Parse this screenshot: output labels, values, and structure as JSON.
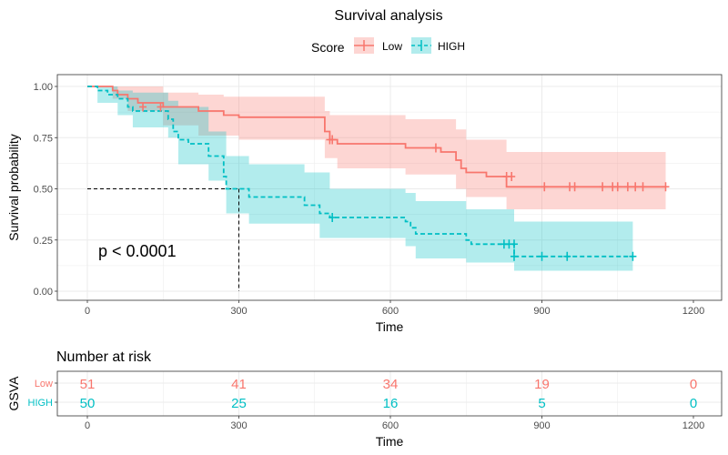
{
  "colors": {
    "low": "#F8766D",
    "high": "#00BFC4",
    "grid": "#ebebeb",
    "panel_border": "#333333"
  },
  "chart_data": [
    {
      "type": "line",
      "subtype": "kaplan-meier",
      "title": "Survival analysis",
      "xlabel": "Time",
      "ylabel": "Survival probability",
      "xlim": [
        0,
        1200
      ],
      "ylim": [
        0,
        1
      ],
      "xticks": [
        "0",
        "300",
        "600",
        "900",
        "1200"
      ],
      "yticks": [
        "0.00",
        "0.25",
        "0.50",
        "0.75",
        "1.00"
      ],
      "grid": true,
      "legend": {
        "title": "Score",
        "position": "top",
        "entries": [
          "Low",
          "HIGH"
        ]
      },
      "annotation": "p < 0.0001",
      "median_line": {
        "y": 0.5,
        "x": 300
      },
      "series": [
        {
          "name": "Low",
          "color": "#F8766D",
          "line_style": "solid",
          "steps": [
            [
              0,
              1.0
            ],
            [
              50,
              0.98
            ],
            [
              60,
              0.96
            ],
            [
              80,
              0.94
            ],
            [
              100,
              0.92
            ],
            [
              150,
              0.9
            ],
            [
              220,
              0.88
            ],
            [
              270,
              0.86
            ],
            [
              300,
              0.85
            ],
            [
              470,
              0.78
            ],
            [
              480,
              0.74
            ],
            [
              495,
              0.72
            ],
            [
              630,
              0.7
            ],
            [
              700,
              0.68
            ],
            [
              730,
              0.64
            ],
            [
              740,
              0.6
            ],
            [
              750,
              0.58
            ],
            [
              790,
              0.56
            ],
            [
              830,
              0.55
            ],
            [
              830,
              0.53
            ],
            [
              830,
              0.51
            ],
            [
              1145,
              0.51
            ]
          ],
          "lower": [
            [
              0,
              1.0
            ],
            [
              50,
              0.94
            ],
            [
              80,
              0.88
            ],
            [
              150,
              0.81
            ],
            [
              220,
              0.76
            ],
            [
              300,
              0.74
            ],
            [
              470,
              0.65
            ],
            [
              495,
              0.6
            ],
            [
              630,
              0.57
            ],
            [
              730,
              0.5
            ],
            [
              750,
              0.46
            ],
            [
              830,
              0.4
            ],
            [
              1145,
              0.38
            ]
          ],
          "upper": [
            [
              0,
              1.0
            ],
            [
              50,
              1.0
            ],
            [
              150,
              0.97
            ],
            [
              220,
              0.96
            ],
            [
              270,
              0.95
            ],
            [
              470,
              0.88
            ],
            [
              480,
              0.86
            ],
            [
              630,
              0.84
            ],
            [
              730,
              0.79
            ],
            [
              750,
              0.74
            ],
            [
              830,
              0.68
            ],
            [
              1145,
              0.68
            ]
          ],
          "censored": [
            [
              110,
              0.9
            ],
            [
              145,
              0.9
            ],
            [
              480,
              0.74
            ],
            [
              485,
              0.74
            ],
            [
              690,
              0.7
            ],
            [
              830,
              0.56
            ],
            [
              840,
              0.56
            ],
            [
              905,
              0.51
            ],
            [
              955,
              0.51
            ],
            [
              965,
              0.51
            ],
            [
              1020,
              0.51
            ],
            [
              1040,
              0.51
            ],
            [
              1050,
              0.51
            ],
            [
              1070,
              0.51
            ],
            [
              1085,
              0.51
            ],
            [
              1100,
              0.51
            ],
            [
              1145,
              0.51
            ]
          ]
        },
        {
          "name": "HIGH",
          "color": "#00BFC4",
          "line_style": "dashed",
          "steps": [
            [
              0,
              1.0
            ],
            [
              20,
              0.98
            ],
            [
              40,
              0.96
            ],
            [
              60,
              0.94
            ],
            [
              80,
              0.9
            ],
            [
              90,
              0.88
            ],
            [
              160,
              0.84
            ],
            [
              170,
              0.78
            ],
            [
              180,
              0.74
            ],
            [
              200,
              0.72
            ],
            [
              240,
              0.66
            ],
            [
              270,
              0.56
            ],
            [
              275,
              0.5
            ],
            [
              300,
              0.5
            ],
            [
              320,
              0.46
            ],
            [
              430,
              0.42
            ],
            [
              460,
              0.38
            ],
            [
              480,
              0.36
            ],
            [
              630,
              0.34
            ],
            [
              640,
              0.31
            ],
            [
              650,
              0.28
            ],
            [
              750,
              0.25
            ],
            [
              760,
              0.23
            ],
            [
              845,
              0.17
            ],
            [
              1080,
              0.17
            ]
          ],
          "lower": [
            [
              0,
              1.0
            ],
            [
              20,
              0.92
            ],
            [
              60,
              0.86
            ],
            [
              90,
              0.8
            ],
            [
              160,
              0.75
            ],
            [
              180,
              0.62
            ],
            [
              240,
              0.54
            ],
            [
              275,
              0.38
            ],
            [
              320,
              0.33
            ],
            [
              460,
              0.26
            ],
            [
              630,
              0.22
            ],
            [
              650,
              0.16
            ],
            [
              750,
              0.14
            ],
            [
              845,
              0.1
            ],
            [
              1080,
              0.1
            ]
          ],
          "upper": [
            [
              0,
              1.0
            ],
            [
              40,
              1.0
            ],
            [
              60,
              0.98
            ],
            [
              90,
              0.97
            ],
            [
              160,
              0.93
            ],
            [
              180,
              0.9
            ],
            [
              240,
              0.78
            ],
            [
              275,
              0.66
            ],
            [
              320,
              0.62
            ],
            [
              430,
              0.58
            ],
            [
              480,
              0.5
            ],
            [
              630,
              0.48
            ],
            [
              650,
              0.44
            ],
            [
              750,
              0.4
            ],
            [
              845,
              0.34
            ],
            [
              1080,
              0.34
            ]
          ],
          "censored": [
            [
              485,
              0.36
            ],
            [
              825,
              0.23
            ],
            [
              835,
              0.23
            ],
            [
              845,
              0.23
            ],
            [
              845,
              0.17
            ],
            [
              900,
              0.17
            ],
            [
              950,
              0.17
            ],
            [
              1080,
              0.17
            ]
          ]
        }
      ]
    },
    {
      "type": "table",
      "title": "Number at risk",
      "xlabel": "Time",
      "ylabel": "GSVA",
      "xticks": [
        "0",
        "300",
        "600",
        "900",
        "1200"
      ],
      "rows": [
        {
          "name": "Low",
          "color": "#F8766D",
          "values": [
            "51",
            "41",
            "34",
            "19",
            "0"
          ]
        },
        {
          "name": "HIGH",
          "color": "#00BFC4",
          "values": [
            "50",
            "25",
            "16",
            "5",
            "0"
          ]
        }
      ]
    }
  ]
}
